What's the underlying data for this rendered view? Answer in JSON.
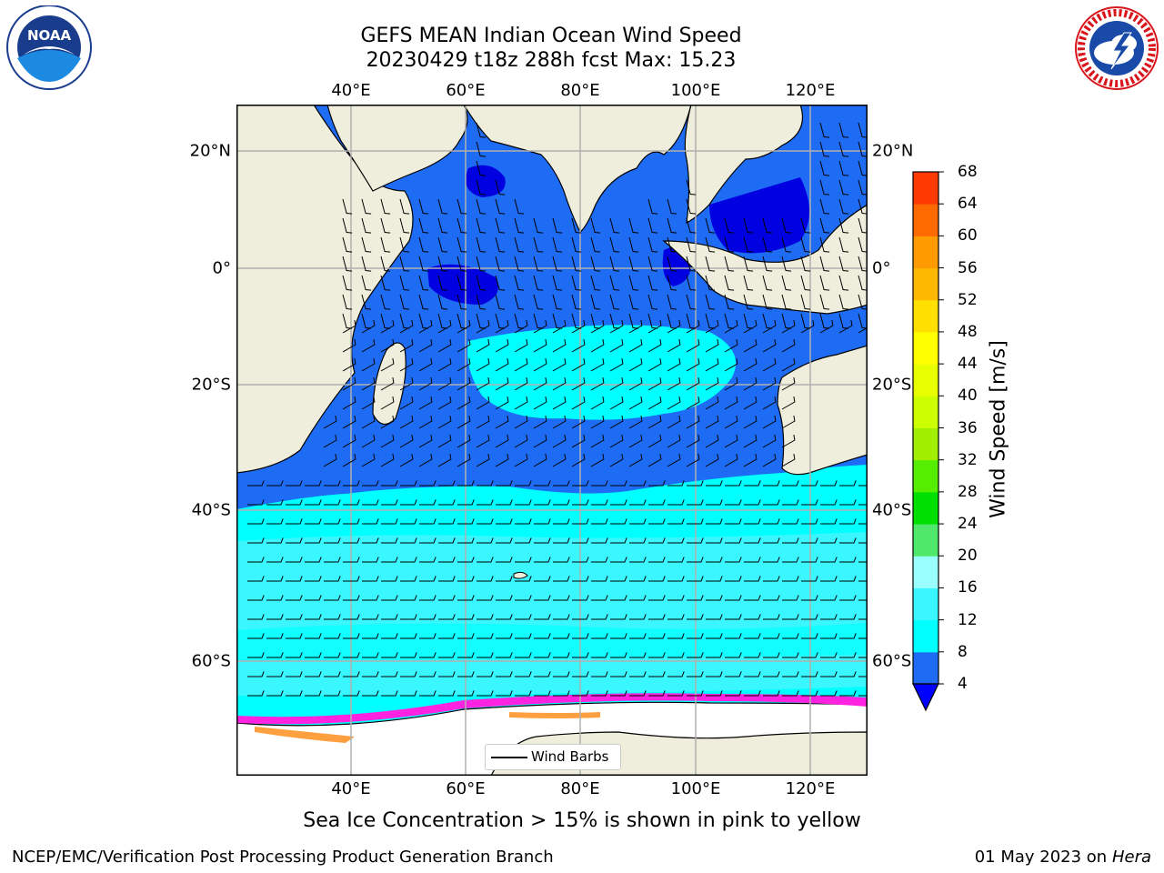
{
  "title": {
    "line1": "GEFS MEAN Indian Ocean Wind Speed",
    "line2": "20230429 t18z 288h fcst   Max: 15.23"
  },
  "map": {
    "lon_ticks": [
      "40°E",
      "60°E",
      "80°E",
      "100°E",
      "120°E"
    ],
    "lat_ticks": [
      "20°N",
      "0°",
      "20°S",
      "40°S",
      "60°S"
    ],
    "legend_label": "Wind Barbs",
    "colors": {
      "land": "#efeedd",
      "ocean_4_8": "#1e6cf4",
      "ocean_lt4": "#0000e0",
      "ocean_8_12": "#00ffff",
      "ocean_12_16": "#3af7ff",
      "ocean_16_20": "#99ffff",
      "sea_ice_pink": "#ff22e0",
      "sea_ice_orange": "#ffa040",
      "antarctica": "#ffffff",
      "grid": "#b0b0b0"
    }
  },
  "colorbar": {
    "label": "Wind Speed [m/s]",
    "ticks": [
      "4",
      "8",
      "12",
      "16",
      "20",
      "24",
      "28",
      "32",
      "36",
      "40",
      "44",
      "48",
      "52",
      "56",
      "60",
      "64",
      "68"
    ],
    "colors": [
      "#1e6cf4",
      "#1e6cf4",
      "#00ffff",
      "#00ffff",
      "#3af7ff",
      "#3af7ff",
      "#99ffff",
      "#99ffff",
      "#4fe86a",
      "#4fe86a",
      "#00e000",
      "#00e000",
      "#55ee00",
      "#55ee00",
      "#a0ee00",
      "#a0ee00",
      "#ccff00",
      "#ccff00",
      "#e7ff00",
      "#e7ff00",
      "#ffff00",
      "#ffff00",
      "#ffe000",
      "#ffe000",
      "#ffb800",
      "#ffb800",
      "#ff9a00",
      "#ff9a00",
      "#ff6a00",
      "#ff6a00",
      "#ff3a00",
      "#ff3a00"
    ],
    "under_color": "#0000ff"
  },
  "footnote": "Sea Ice Concentration > 15% is shown in pink to yellow",
  "credit": "NCEP/EMC/Verification Post Processing Product Generation Branch",
  "date": "01 May 2023 on",
  "machine": "Hera",
  "logos": {
    "left": "NOAA",
    "right": "NATIONAL WEATHER SERVICE"
  }
}
